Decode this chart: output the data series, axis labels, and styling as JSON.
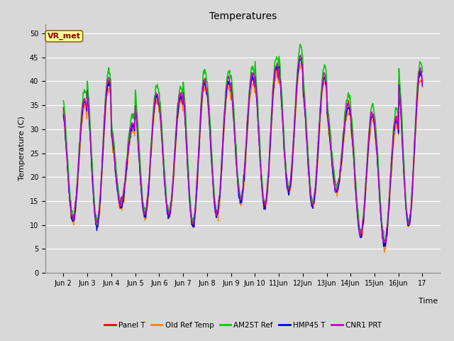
{
  "title": "Temperatures",
  "xlabel": "Time",
  "ylabel": "Temperature (C)",
  "ylim": [
    0,
    52
  ],
  "yticks": [
    0,
    5,
    10,
    15,
    20,
    25,
    30,
    35,
    40,
    45,
    50
  ],
  "annotation": "VR_met",
  "fig_bg": "#d8d8d8",
  "plot_bg": "#d8d8d8",
  "series": [
    {
      "label": "Panel T",
      "color": "#ff0000",
      "lw": 1.0
    },
    {
      "label": "Old Ref Temp",
      "color": "#ff8800",
      "lw": 1.0
    },
    {
      "label": "AM25T Ref",
      "color": "#00cc00",
      "lw": 1.2
    },
    {
      "label": "HMP45 T",
      "color": "#0000ff",
      "lw": 1.0
    },
    {
      "label": "CNR1 PRT",
      "color": "#cc00cc",
      "lw": 1.0
    }
  ],
  "start_day": 2,
  "end_day": 17,
  "points_per_day": 48,
  "daily_min": [
    11,
    10,
    14,
    12,
    12,
    10,
    12,
    15,
    14,
    17,
    14,
    17,
    8,
    6,
    10,
    12
  ],
  "daily_max": [
    36,
    40,
    31,
    37,
    37,
    40,
    40,
    41,
    43,
    45,
    41,
    35,
    33,
    32,
    42,
    40
  ],
  "xtick_labels": [
    "Jun 2",
    "Jun 3",
    "Jun 4",
    "Jun 5",
    "Jun 6",
    "Jun 7",
    "Jun 8",
    "Jun 9",
    "Jun 10",
    "11Jun",
    "12Jun",
    "13Jun",
    "14Jun",
    "15Jun",
    "16Jun",
    "17"
  ],
  "grid_color": "#ffffff",
  "title_fontsize": 10,
  "axis_fontsize": 8,
  "tick_fontsize": 7,
  "legend_fontsize": 7.5
}
